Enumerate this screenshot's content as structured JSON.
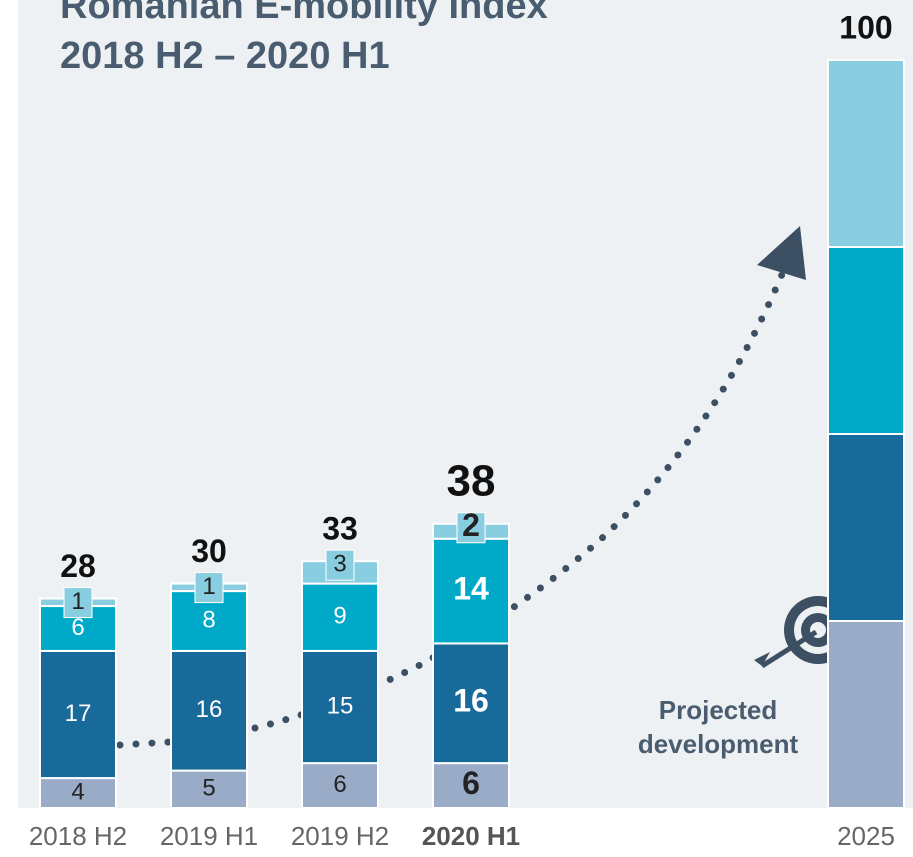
{
  "chart_data": {
    "type": "stacked_bar",
    "title": "Romanian E-mobility Index",
    "subtitle": "2018 H2 – 2020 H1",
    "annotation": "Projected development",
    "categories": [
      "2018 H2",
      "2019 H1",
      "2019 H2",
      "2020 H1",
      "2025"
    ],
    "highlight": 3,
    "label_segments": [
      true,
      true,
      true,
      true,
      false
    ],
    "totals": [
      28,
      30,
      33,
      38,
      100
    ],
    "series": [
      {
        "color": "#9aabc8",
        "values": [
          4,
          5,
          6,
          6,
          25
        ]
      },
      {
        "color": "#186a9b",
        "values": [
          17,
          16,
          15,
          16,
          25
        ]
      },
      {
        "color": "#00a9c7",
        "values": [
          6,
          8,
          9,
          14,
          25
        ]
      },
      {
        "color": "#88cde0",
        "values": [
          1,
          1,
          3,
          2,
          25
        ]
      }
    ],
    "ylim": [
      0,
      100
    ]
  }
}
